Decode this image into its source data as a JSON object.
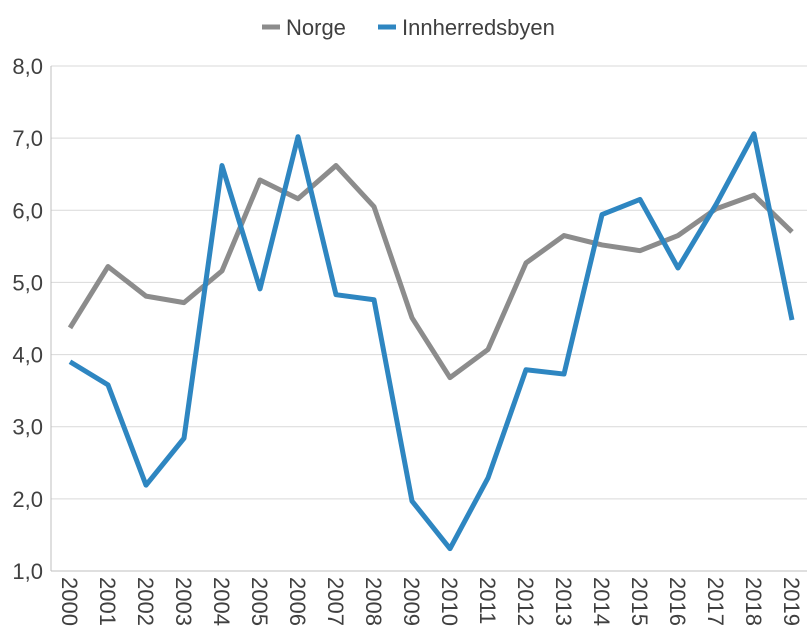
{
  "chart_data": {
    "type": "line",
    "categories": [
      "2000",
      "2001",
      "2002",
      "2003",
      "2004",
      "2005",
      "2006",
      "2007",
      "2008",
      "2009",
      "2010",
      "2011",
      "2012",
      "2013",
      "2014",
      "2015",
      "2016",
      "2017",
      "2018",
      "2019"
    ],
    "series": [
      {
        "name": "Norge",
        "color": "#8c8c8c",
        "values": [
          4.37,
          5.22,
          4.81,
          4.72,
          5.16,
          6.42,
          6.16,
          6.62,
          6.05,
          4.51,
          3.68,
          4.07,
          5.27,
          5.65,
          5.52,
          5.44,
          5.65,
          6.02,
          6.21,
          5.7
        ]
      },
      {
        "name": "Innherredsbyen",
        "color": "#2e86c1",
        "values": [
          3.9,
          3.58,
          2.19,
          2.84,
          6.62,
          4.91,
          7.02,
          4.83,
          4.76,
          1.97,
          1.31,
          2.29,
          3.79,
          3.73,
          5.94,
          6.15,
          5.2,
          6.08,
          7.06,
          4.48
        ]
      }
    ],
    "ylim": [
      1,
      8
    ],
    "yticks": [
      {
        "value": 1,
        "label": "1,0"
      },
      {
        "value": 2,
        "label": "2,0"
      },
      {
        "value": 3,
        "label": "3,0"
      },
      {
        "value": 4,
        "label": "4,0"
      },
      {
        "value": 5,
        "label": "5,0"
      },
      {
        "value": 6,
        "label": "6,0"
      },
      {
        "value": 7,
        "label": "7,0"
      },
      {
        "value": 8,
        "label": "8,0"
      }
    ],
    "grid": true,
    "legend": "top"
  }
}
